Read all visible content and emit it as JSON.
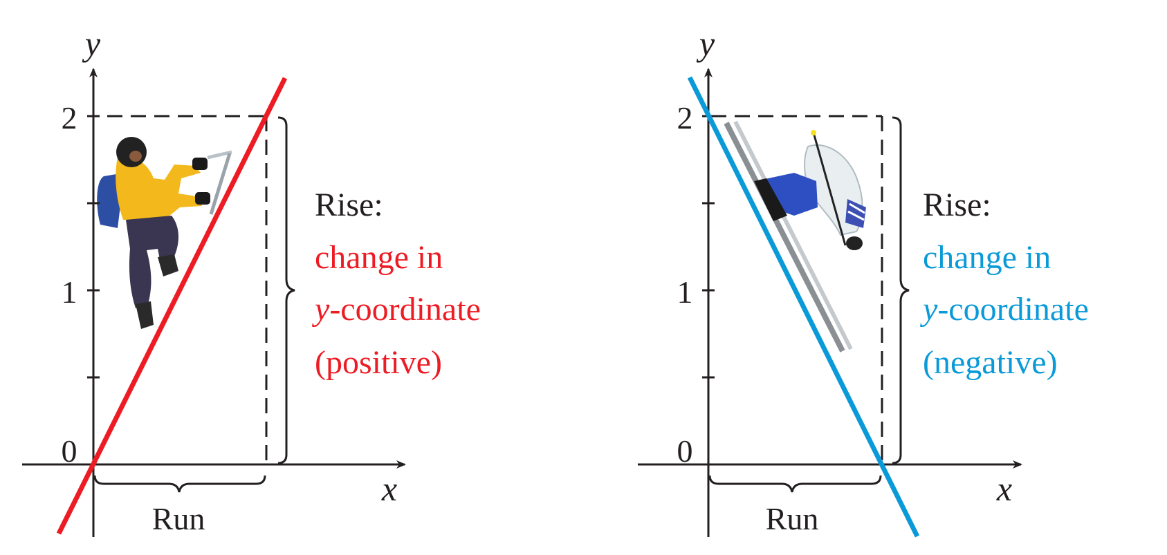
{
  "colors": {
    "axis": "#231f20",
    "positive": "#ed1c24",
    "negative": "#0a9ad8"
  },
  "left_panel": {
    "y_axis_label": "y",
    "x_axis_label": "x",
    "ticks": {
      "t0": "0",
      "t1": "1",
      "t2": "2"
    },
    "run_label": "Run",
    "rise_label": "Rise:",
    "rise_line1": "change in",
    "rise_line2_italic": "y",
    "rise_line2_rest": "-coordinate",
    "rise_line3": "(positive)",
    "figure_icon": "ice-climber-icon"
  },
  "right_panel": {
    "y_axis_label": "y",
    "x_axis_label": "x",
    "ticks": {
      "t0": "0",
      "t1": "1",
      "t2": "2"
    },
    "run_label": "Run",
    "rise_label": "Rise:",
    "rise_line1": "change in",
    "rise_line2_italic": "y",
    "rise_line2_rest": "-coordinate",
    "rise_line3": "(negative)",
    "figure_icon": "skier-icon"
  }
}
